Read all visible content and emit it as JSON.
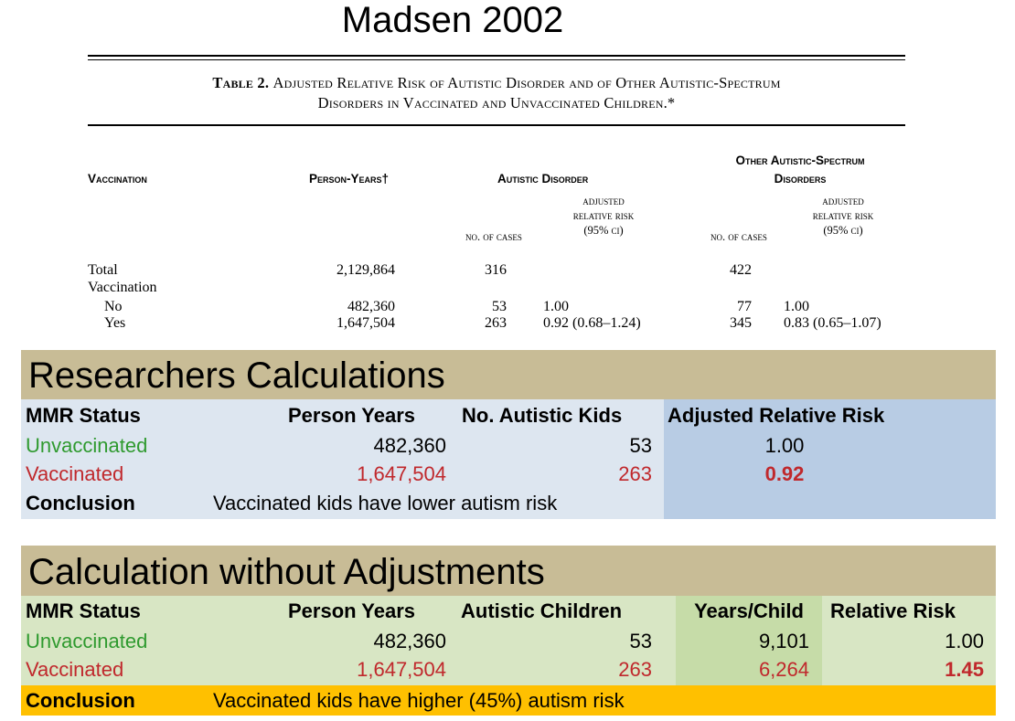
{
  "title": "Madsen 2002",
  "table": {
    "caption_label": "Table 2.",
    "caption_text_1": "Adjusted Relative Risk of Autistic Disorder and of Other Autistic-Spectrum",
    "caption_text_2": "Disorders in Vaccinated and Unvaccinated Children.*",
    "headers": {
      "vaccination": "Vaccination",
      "person_years": "Person-Years†",
      "autistic_disorder": "Autistic Disorder",
      "other_line1": "Other Autistic-Spectrum",
      "other_line2": "Disorders",
      "no_of_cases": "no. of cases",
      "adj_line1": "adjusted",
      "adj_line2": "relative risk",
      "adj_line3": "(95% ci)"
    },
    "rows": {
      "total_label": "Total",
      "vaccination_label": "Vaccination",
      "no_label": "No",
      "yes_label": "Yes",
      "total_person_years": "2,129,864",
      "total_ad_cases": "316",
      "total_oasd_cases": "422",
      "no_person_years": "482,360",
      "no_ad_cases": "53",
      "no_ad_rr": "1.00",
      "no_oasd_cases": "77",
      "no_oasd_rr": "1.00",
      "yes_person_years": "1,647,504",
      "yes_ad_cases": "263",
      "yes_ad_rr": "0.92 (0.68–1.24)",
      "yes_oasd_cases": "345",
      "yes_oasd_rr": "0.83 (0.65–1.07)"
    }
  },
  "researchers": {
    "title": "Researchers Calculations",
    "headers": {
      "mmr": "MMR Status",
      "person_years": "Person Years",
      "autistic": "No. Autistic Kids",
      "arr": "Adjusted Relative Risk"
    },
    "unvaccinated": {
      "label": "Unvaccinated",
      "person_years": "482,360",
      "count": "53",
      "risk": "1.00"
    },
    "vaccinated": {
      "label": "Vaccinated",
      "person_years": "1,647,504",
      "count": "263",
      "risk": "0.92"
    },
    "conclusion_label": "Conclusion",
    "conclusion_text": "Vaccinated kids have lower autism risk",
    "colors": {
      "band": "#c8bc96",
      "body": "#dde6f0",
      "risk_column": "#b8cce4"
    }
  },
  "without": {
    "title": "Calculation without Adjustments",
    "headers": {
      "mmr": "MMR Status",
      "person_years": "Person Years",
      "autistic": "Autistic Children",
      "years_child": "Years/Child",
      "rr": "Relative Risk"
    },
    "unvaccinated": {
      "label": "Unvaccinated",
      "person_years": "482,360",
      "count": "53",
      "years_child": "9,101",
      "risk": "1.00"
    },
    "vaccinated": {
      "label": "Vaccinated",
      "person_years": "1,647,504",
      "count": "263",
      "years_child": "6,264",
      "risk": "1.45"
    },
    "conclusion_label": "Conclusion",
    "conclusion_text": "Vaccinated kids have higher (45%) autism risk",
    "colors": {
      "band": "#c8bc96",
      "body": "#d8e6c4",
      "years_column": "#c6dca8",
      "conclusion": "#ffc000"
    }
  }
}
